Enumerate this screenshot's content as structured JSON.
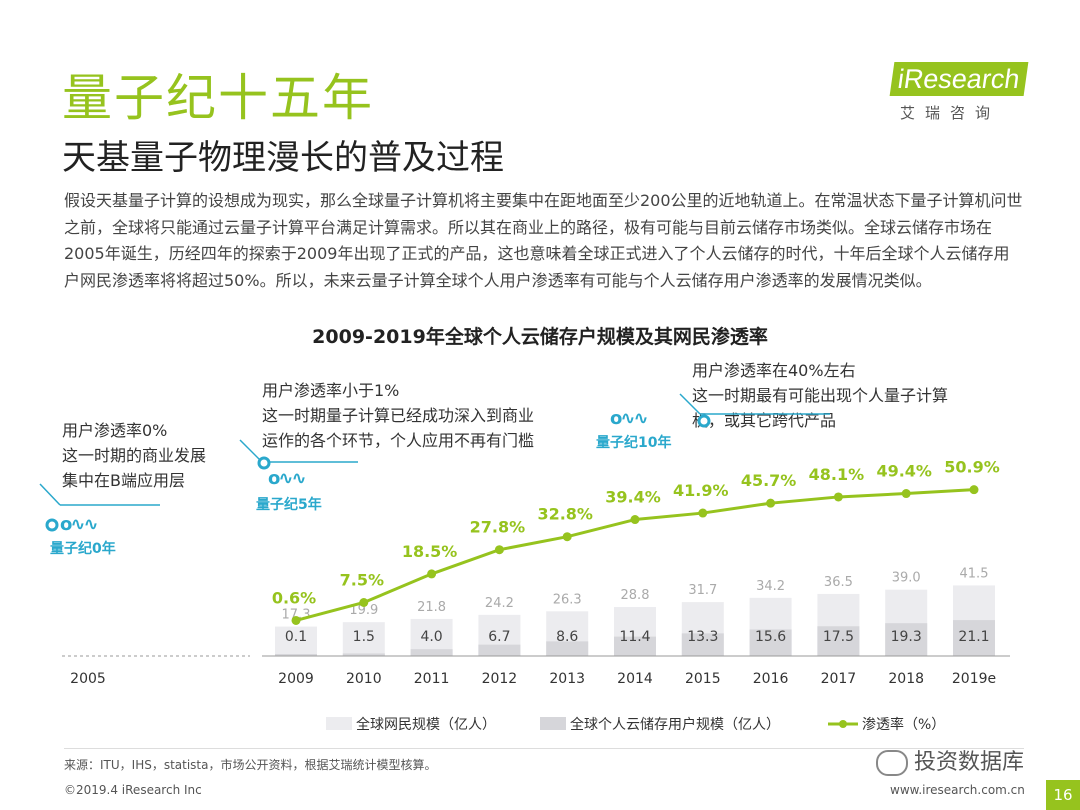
{
  "header": {
    "title": "量子纪十五年",
    "subtitle": "天基量子物理漫长的普及过程",
    "logo_main": "iResearch",
    "logo_sub": "艾瑞咨询"
  },
  "intro": "假设天基量子计算的设想成为现实，那么全球量子计算机将主要集中在距地面至少200公里的近地轨道上。在常温状态下量子计算机问世之前，全球将只能通过云量子计算平台满足计算需求。所以其在商业上的路径，极有可能与目前云储存市场类似。全球云储存市场在2005年诞生，历经四年的探索于2009年出现了正式的产品，这也意味着全球正式进入了个人云储存的时代，十年后全球个人云储存用户网民渗透率将将超过50%。所以，未来云量子计算全球个人用户渗透率有可能与个人云储存用户渗透率的发展情况类似。",
  "annotations": {
    "q0": {
      "lines": [
        "用户渗透率0%",
        "这一时期的商业发展",
        "集中在B端应用层"
      ],
      "label": "量子纪0年"
    },
    "q5": {
      "lines": [
        "用户渗透率小于1%",
        "这一时期量子计算已经成功深入到商业",
        "运作的各个环节，个人应用不再有门槛"
      ],
      "label": "量子纪5年"
    },
    "q10": {
      "lines": [
        "用户渗透率在40%左右",
        "这一时期最有可能出现个人量子计算",
        "机，或其它跨代产品"
      ],
      "label": "量子纪10年"
    }
  },
  "chart_data": {
    "type": "bar+line",
    "title": "2009-2019年全球个人云储存户规模及其网民渗透率",
    "origin_label": "2005",
    "categories": [
      "2009",
      "2010",
      "2011",
      "2012",
      "2013",
      "2014",
      "2015",
      "2016",
      "2017",
      "2018",
      "2019e"
    ],
    "series": [
      {
        "name": "全球网民规模（亿人）",
        "type": "bar",
        "values": [
          17.3,
          19.9,
          21.8,
          24.2,
          26.3,
          28.8,
          31.7,
          34.2,
          36.5,
          39.0,
          41.5
        ],
        "labels": [
          "17.3",
          "19.9",
          "21.8",
          "24.2",
          "26.3",
          "28.8",
          "31.7",
          "34.2",
          "36.5",
          "39.0",
          "41.5"
        ],
        "color": "#ececef"
      },
      {
        "name": "全球个人云储存用户规模（亿人）",
        "type": "bar",
        "values": [
          0.1,
          1.5,
          4.0,
          6.7,
          8.6,
          11.4,
          13.3,
          15.6,
          17.5,
          19.3,
          21.1
        ],
        "labels": [
          "0.1",
          "1.5",
          "4.0",
          "6.7",
          "8.6",
          "11.4",
          "13.3",
          "15.6",
          "17.5",
          "19.3",
          "21.1"
        ],
        "color": "#d6d6da"
      },
      {
        "name": "渗透率（%）",
        "type": "line",
        "values": [
          0.6,
          7.5,
          18.5,
          27.8,
          32.8,
          39.4,
          41.9,
          45.7,
          48.1,
          49.4,
          50.9
        ],
        "labels": [
          "0.6%",
          "7.5%",
          "18.5%",
          "27.8%",
          "32.8%",
          "39.4%",
          "41.9%",
          "45.7%",
          "48.1%",
          "49.4%",
          "50.9%"
        ],
        "color": "#96c31e"
      }
    ]
  },
  "footer": {
    "source": "来源：ITU，IHS，statista，市场公开资料，根据艾瑞统计模型核算。",
    "copyright": "©2019.4 iResearch Inc",
    "website": "www.iresearch.com.cn",
    "page": "16",
    "watermark": "投资数据库"
  },
  "colors": {
    "accent": "#96c31e",
    "annotation": "#2aa8cc"
  }
}
